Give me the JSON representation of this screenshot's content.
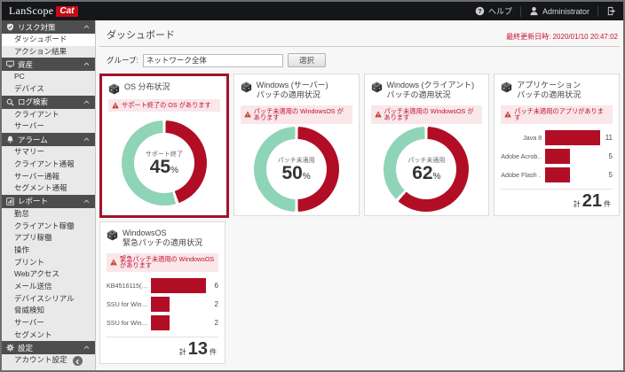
{
  "app": {
    "brand_left": "LanScope",
    "brand_right": "Cat"
  },
  "topbar": {
    "help_label": "ヘルプ",
    "user_label": "Administrator",
    "icons": [
      "help-icon",
      "user-icon",
      "logout-icon"
    ]
  },
  "page": {
    "title": "ダッシュボード",
    "last_updated_label": "最終更新日時:",
    "last_updated_value": "2020/01/10 20:47:02"
  },
  "group": {
    "label": "グループ:",
    "value": "ネットワーク全体",
    "select_button": "選択"
  },
  "colors": {
    "brand_red": "#c40a14",
    "chart_red": "#b10e26",
    "chart_teal": "#8fd4b6",
    "alert_bg": "#f9e7ea",
    "alert_text": "#c01030",
    "highlight_border": "#9e1528",
    "last_updated_text": "#c81432"
  },
  "sidebar": {
    "sections": [
      {
        "id": "risk-measures",
        "icon": "risk-icon",
        "label": "リスク対策",
        "items": [
          {
            "id": "dashboard",
            "label": "ダッシュボード",
            "active": true
          },
          {
            "id": "action-results",
            "label": "アクション結果",
            "active": false
          }
        ]
      },
      {
        "id": "assets",
        "icon": "assets-icon",
        "label": "資産",
        "items": [
          {
            "id": "pc",
            "label": "PC",
            "active": false
          },
          {
            "id": "devices",
            "label": "デバイス",
            "active": false
          }
        ]
      },
      {
        "id": "log-search",
        "icon": "log-search-icon",
        "label": "ログ検索",
        "items": [
          {
            "id": "client",
            "label": "クライアント",
            "active": false
          },
          {
            "id": "server",
            "label": "サーバー",
            "active": false
          }
        ]
      },
      {
        "id": "alarm",
        "icon": "alarm-icon",
        "label": "アラーム",
        "items": [
          {
            "id": "summary",
            "label": "サマリー",
            "active": false
          },
          {
            "id": "client-report",
            "label": "クライアント通報",
            "active": false
          },
          {
            "id": "server-report",
            "label": "サーバー通報",
            "active": false
          },
          {
            "id": "segment-report",
            "label": "セグメント通報",
            "active": false
          }
        ]
      },
      {
        "id": "report",
        "icon": "report-icon",
        "label": "レポート",
        "items": [
          {
            "id": "attendance",
            "label": "勤怠",
            "active": false
          },
          {
            "id": "client-operation",
            "label": "クライアント稼働",
            "active": false
          },
          {
            "id": "app-operation",
            "label": "アプリ稼働",
            "active": false
          },
          {
            "id": "operation",
            "label": "操作",
            "active": false
          },
          {
            "id": "print",
            "label": "プリント",
            "active": false
          },
          {
            "id": "web-access",
            "label": "Webアクセス",
            "active": false
          },
          {
            "id": "mail-send",
            "label": "メール送信",
            "active": false
          },
          {
            "id": "device-serial",
            "label": "デバイスシリアル",
            "active": false
          },
          {
            "id": "threat-detection",
            "label": "脅威検知",
            "active": false
          },
          {
            "id": "server2",
            "label": "サーバー",
            "active": false
          },
          {
            "id": "segment",
            "label": "セグメント",
            "active": false
          }
        ]
      },
      {
        "id": "settings",
        "icon": "settings-icon",
        "label": "設定",
        "items": [
          {
            "id": "account-settings",
            "label": "アカウント設定",
            "active": false
          }
        ]
      }
    ]
  },
  "cards": [
    {
      "id": "os-distribution",
      "row": 1,
      "highlighted": true,
      "title_lines": [
        "OS 分布状況"
      ],
      "alert": "サポート終了の OS があります",
      "chart": {
        "type": "donut",
        "percent": 45,
        "center_label": "サポート終了",
        "center_value": "45",
        "unit": "%"
      }
    },
    {
      "id": "windows-server-patch",
      "row": 1,
      "highlighted": false,
      "title_lines": [
        "Windows (サーバー)",
        "パッチの適用状況"
      ],
      "alert": "パッチ未適用の WindowsOS があります",
      "chart": {
        "type": "donut",
        "percent": 50,
        "center_label": "パッチ未適用",
        "center_value": "50",
        "unit": "%"
      }
    },
    {
      "id": "windows-client-patch",
      "row": 1,
      "highlighted": false,
      "title_lines": [
        "Windows (クライアント)",
        "パッチの適用状況"
      ],
      "alert": "パッチ未適用の WindowsOS があります",
      "chart": {
        "type": "donut",
        "percent": 62,
        "center_label": "パッチ未適用",
        "center_value": "62",
        "unit": "%"
      }
    },
    {
      "id": "application-patch",
      "row": 1,
      "highlighted": false,
      "title_lines": [
        "アプリケーション",
        "パッチの適用状況"
      ],
      "alert": "パッチ未適用のアプリがあります",
      "chart": {
        "type": "bar",
        "items": [
          {
            "label": "Java 8",
            "value": 11
          },
          {
            "label": "Adobe Acrob…",
            "value": 5
          },
          {
            "label": "Adobe Flash …",
            "value": 5
          }
        ],
        "total_label": "計",
        "total_value": 21,
        "total_unit": "件"
      }
    },
    {
      "id": "windowsos-urgent-patch",
      "row": 2,
      "highlighted": false,
      "title_lines": [
        "WindowsOS",
        "緊急パッチの適用状況"
      ],
      "alert": "緊急パッチ未適用の WindowsOS があります",
      "chart": {
        "type": "bar",
        "items": [
          {
            "label": "KB4516115(…",
            "value": 6
          },
          {
            "label": "SSU for Win…",
            "value": 2
          },
          {
            "label": "SSU for Win…",
            "value": 2
          }
        ],
        "total_label": "計",
        "total_value": 13,
        "total_unit": "件"
      }
    }
  ]
}
